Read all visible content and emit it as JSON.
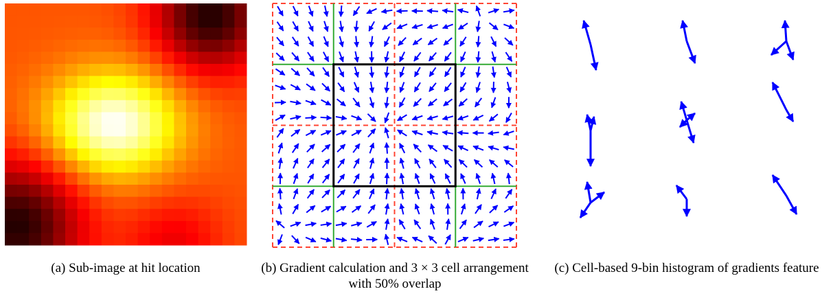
{
  "figure": {
    "captions": [
      "(a) Sub-image at hit location",
      "(b) Gradient calculation and 3 × 3 cell arrangement with 50% overlap",
      "(c) Cell-based 9-bin histogram of gradients feature"
    ]
  }
}
